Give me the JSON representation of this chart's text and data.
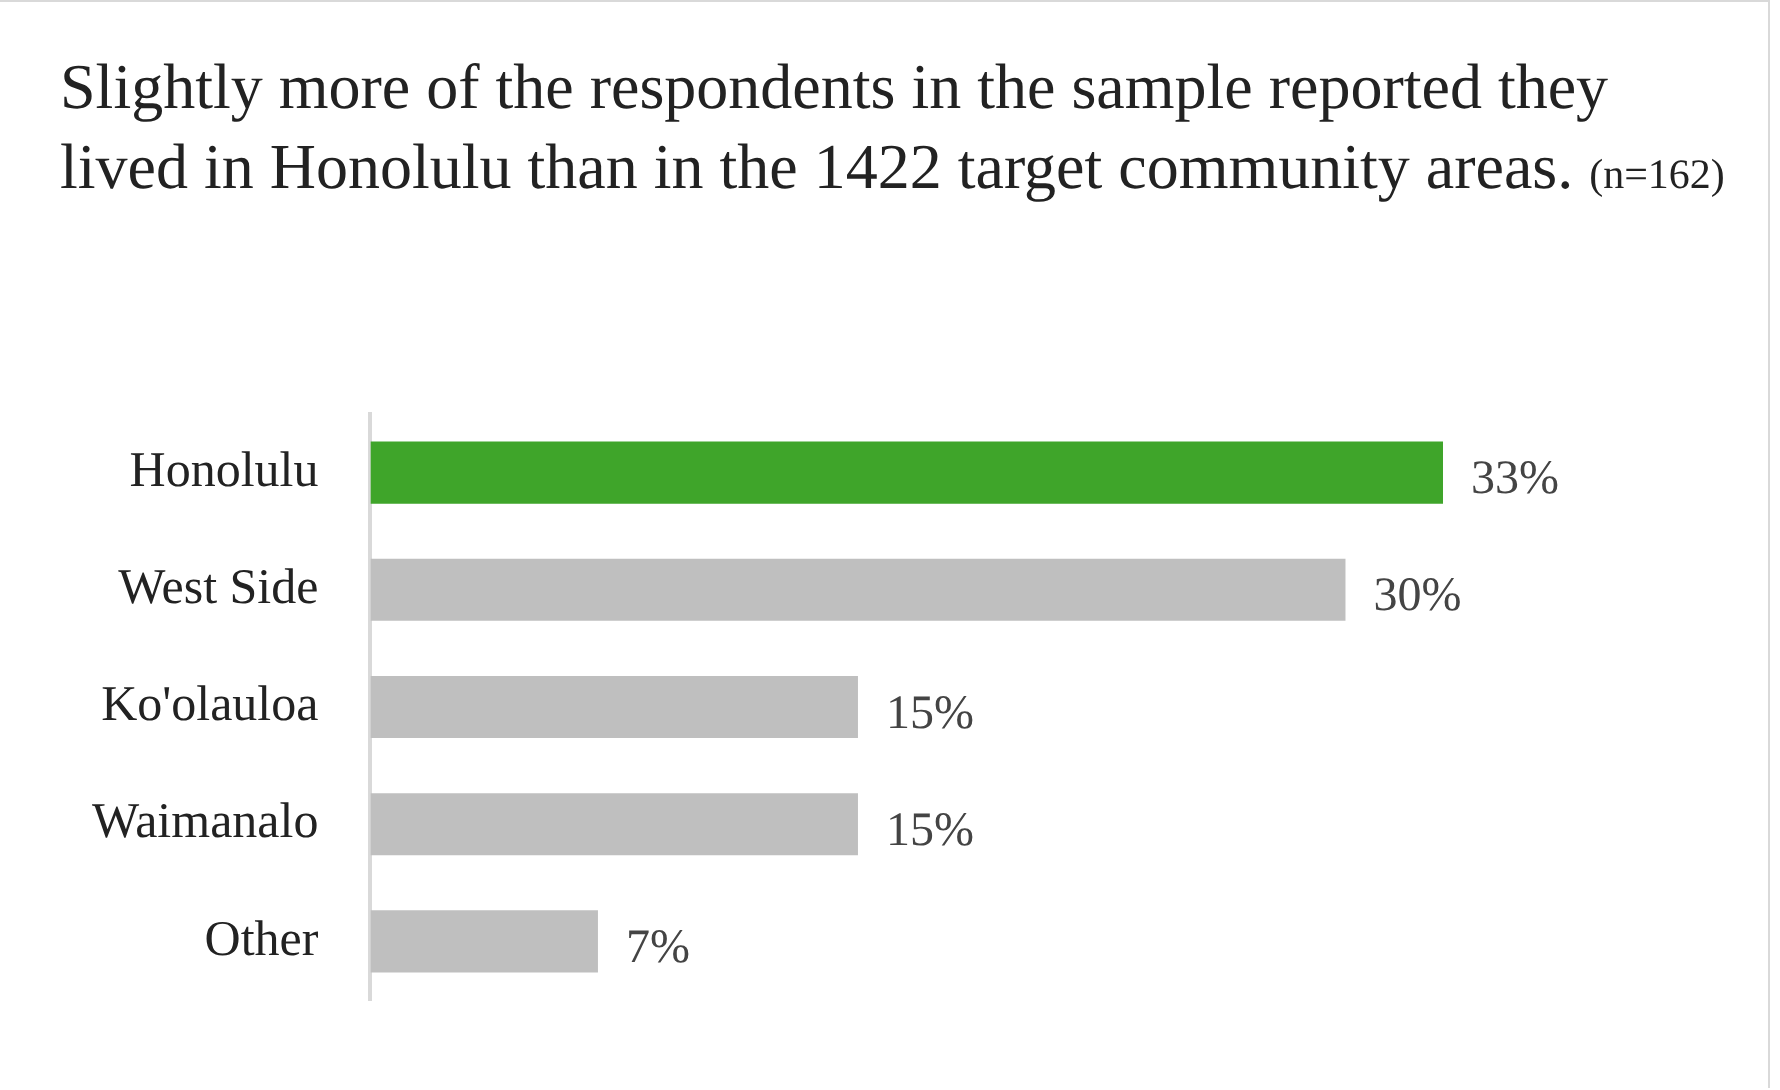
{
  "chart_data": {
    "type": "bar",
    "orientation": "horizontal",
    "title": "Slightly more of the respondents in the sample reported they lived in Honolulu than in the 1422 target community areas.",
    "annotations": [
      "(n=162)"
    ],
    "categories": [
      "Honolulu",
      "West Side",
      "Ko'olauloa",
      "Waimanalo",
      "Other"
    ],
    "values": [
      33,
      30,
      15,
      15,
      7
    ],
    "colors": [
      "#3fa52a",
      "#bfbfbf",
      "#bfbfbf",
      "#bfbfbf",
      "#bfbfbf"
    ],
    "value_labels": [
      "33%",
      "30%",
      "15%",
      "15%",
      "7%"
    ],
    "grid": false,
    "legend": false
  }
}
